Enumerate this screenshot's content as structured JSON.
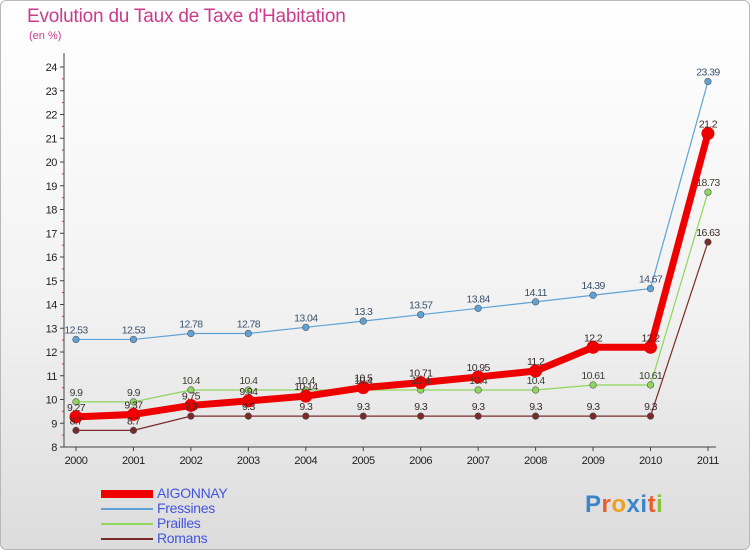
{
  "title": "Evolution du Taux de Taxe d'Habitation",
  "subtitle": "(en %)",
  "logo_text": "Proxiti",
  "chart_data": {
    "type": "line",
    "title": "Evolution du Taux de Taxe d'Habitation",
    "ylabel": "(en %)",
    "xlabel": "",
    "ylim": [
      8,
      24
    ],
    "yticks": [
      "8",
      "9",
      "10",
      "11",
      "12",
      "13",
      "14",
      "15",
      "16",
      "17",
      "18",
      "19",
      "20",
      "21",
      "22",
      "23",
      "24"
    ],
    "categories": [
      "2000",
      "2001",
      "2002",
      "2003",
      "2004",
      "2005",
      "2006",
      "2007",
      "2008",
      "2009",
      "2010",
      "2011"
    ],
    "series": [
      {
        "name": "Fressines",
        "color": "#5fa3d6",
        "values": [
          12.53,
          12.53,
          12.78,
          12.78,
          13.04,
          13.3,
          13.57,
          13.84,
          14.11,
          14.39,
          14.67,
          23.39
        ],
        "labels": [
          "12.53",
          "12.53",
          "12.78",
          "12.78",
          "13.04",
          "13.3",
          "13.57",
          "13.84",
          "14.11",
          "14.39",
          "14.67",
          "23.39"
        ]
      },
      {
        "name": "Prailles",
        "color": "#8ed65c",
        "values": [
          9.9,
          9.9,
          10.4,
          10.4,
          10.4,
          10.4,
          10.4,
          10.4,
          10.4,
          10.61,
          10.61,
          18.73
        ],
        "labels": [
          "9.9",
          "9.9",
          "10.4",
          "10.4",
          "10.4",
          "10.4",
          "10.4",
          "10.4",
          "10.4",
          "10.61",
          "10.61",
          "18.73"
        ]
      },
      {
        "name": "Romans",
        "color": "#7b2a2a",
        "values": [
          8.7,
          8.7,
          9.3,
          9.3,
          9.3,
          9.3,
          9.3,
          9.3,
          9.3,
          9.3,
          9.3,
          16.63
        ],
        "labels": [
          "8.7",
          "8.7",
          "9.3",
          "9.3",
          "9.3",
          "9.3",
          "9.3",
          "9.3",
          "9.3",
          "9.3",
          "9.3",
          "16.63"
        ]
      },
      {
        "name": "AIGONNAY",
        "color": "#ee0000",
        "values": [
          9.27,
          9.37,
          9.75,
          9.94,
          10.14,
          10.5,
          10.71,
          10.95,
          11.2,
          12.2,
          12.2,
          21.2
        ],
        "labels": [
          "9.27",
          "9.37",
          "9.75",
          "9.94",
          "10.14",
          "10.5",
          "10.71",
          "10.95",
          "11.2",
          "12.2",
          "12.2",
          "21.2"
        ]
      }
    ],
    "legend": [
      {
        "name": "AIGONNAY",
        "color": "#ee0000",
        "thick": true
      },
      {
        "name": "Fressines",
        "color": "#5fa3d6",
        "thick": false
      },
      {
        "name": "Prailles",
        "color": "#8ed65c",
        "thick": false
      },
      {
        "name": "Romans",
        "color": "#7b2a2a",
        "thick": false
      }
    ]
  }
}
